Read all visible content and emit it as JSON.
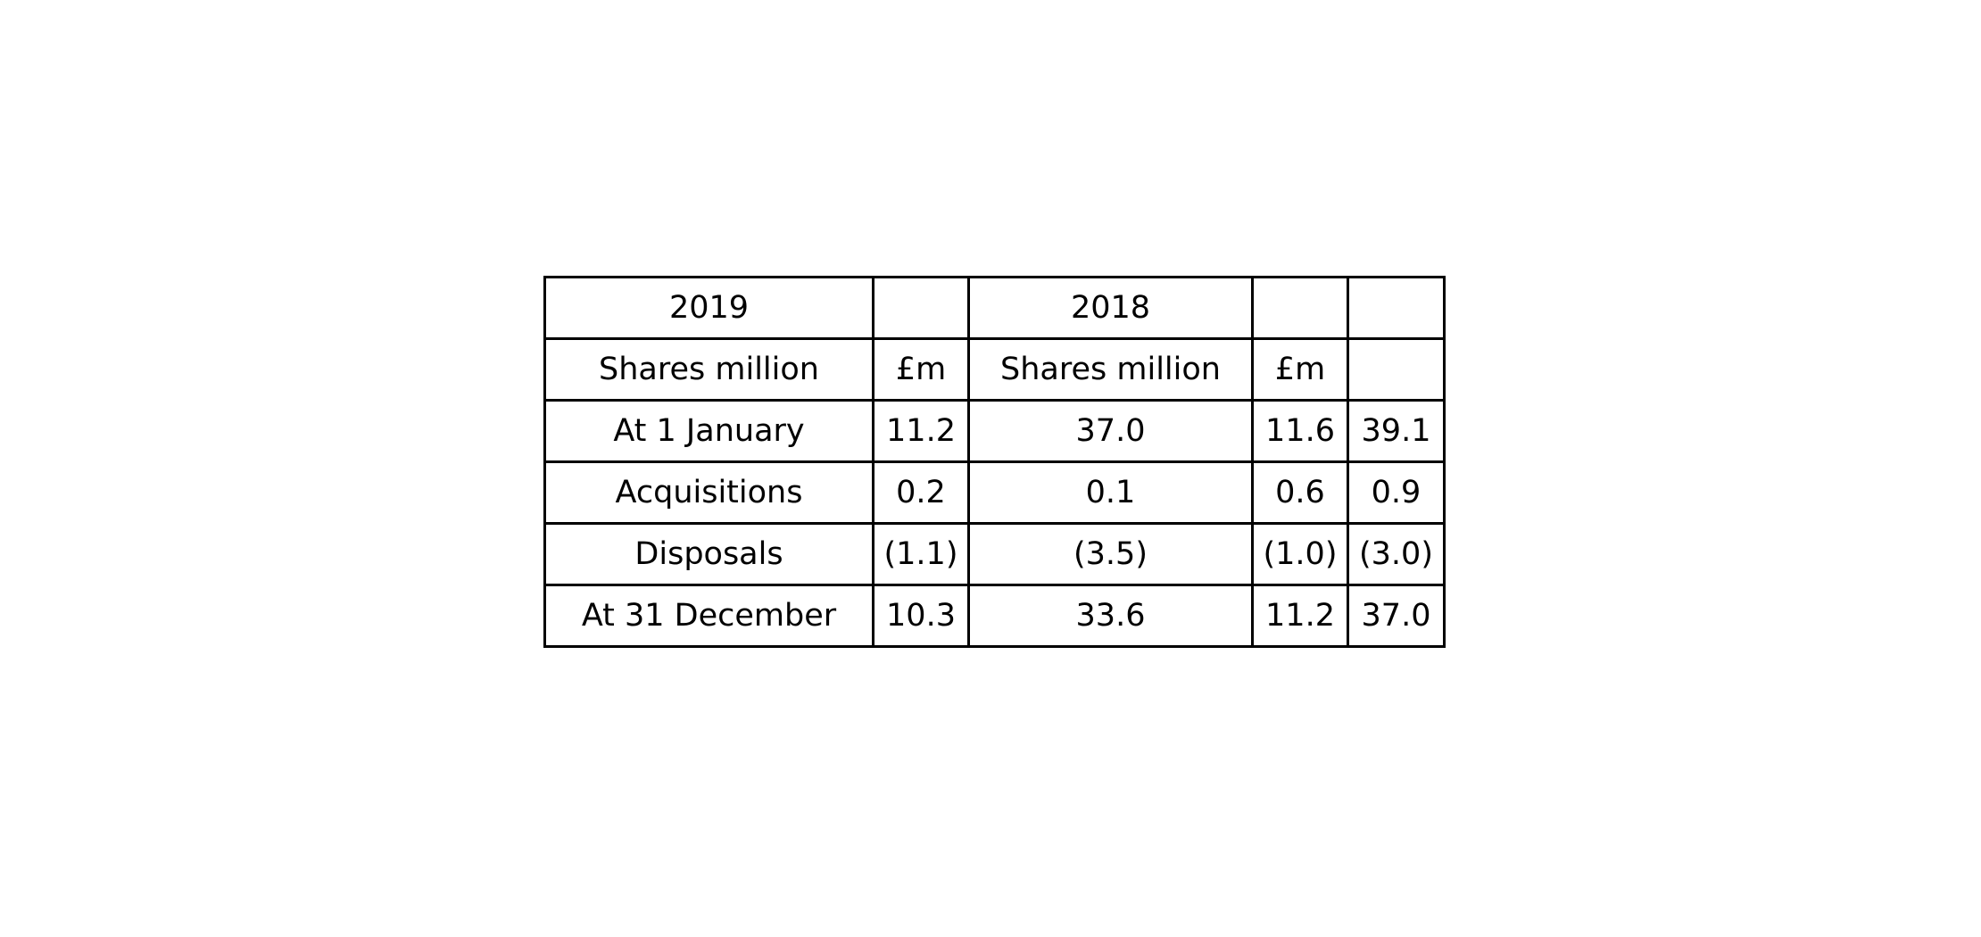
{
  "table": {
    "rows": [
      [
        "2019",
        "",
        "2018",
        "",
        ""
      ],
      [
        "Shares million",
        "£m",
        "Shares million",
        "£m",
        ""
      ],
      [
        "At 1 January",
        "11.2",
        "37.0",
        "11.6",
        "39.1"
      ],
      [
        "Acquisitions",
        "0.2",
        "0.1",
        "0.6",
        "0.9"
      ],
      [
        "Disposals",
        "(1.1)",
        "(3.5)",
        "(1.0)",
        "(3.0)"
      ],
      [
        "At 31 December",
        "10.3",
        "33.6",
        "11.2",
        "37.0"
      ]
    ]
  }
}
